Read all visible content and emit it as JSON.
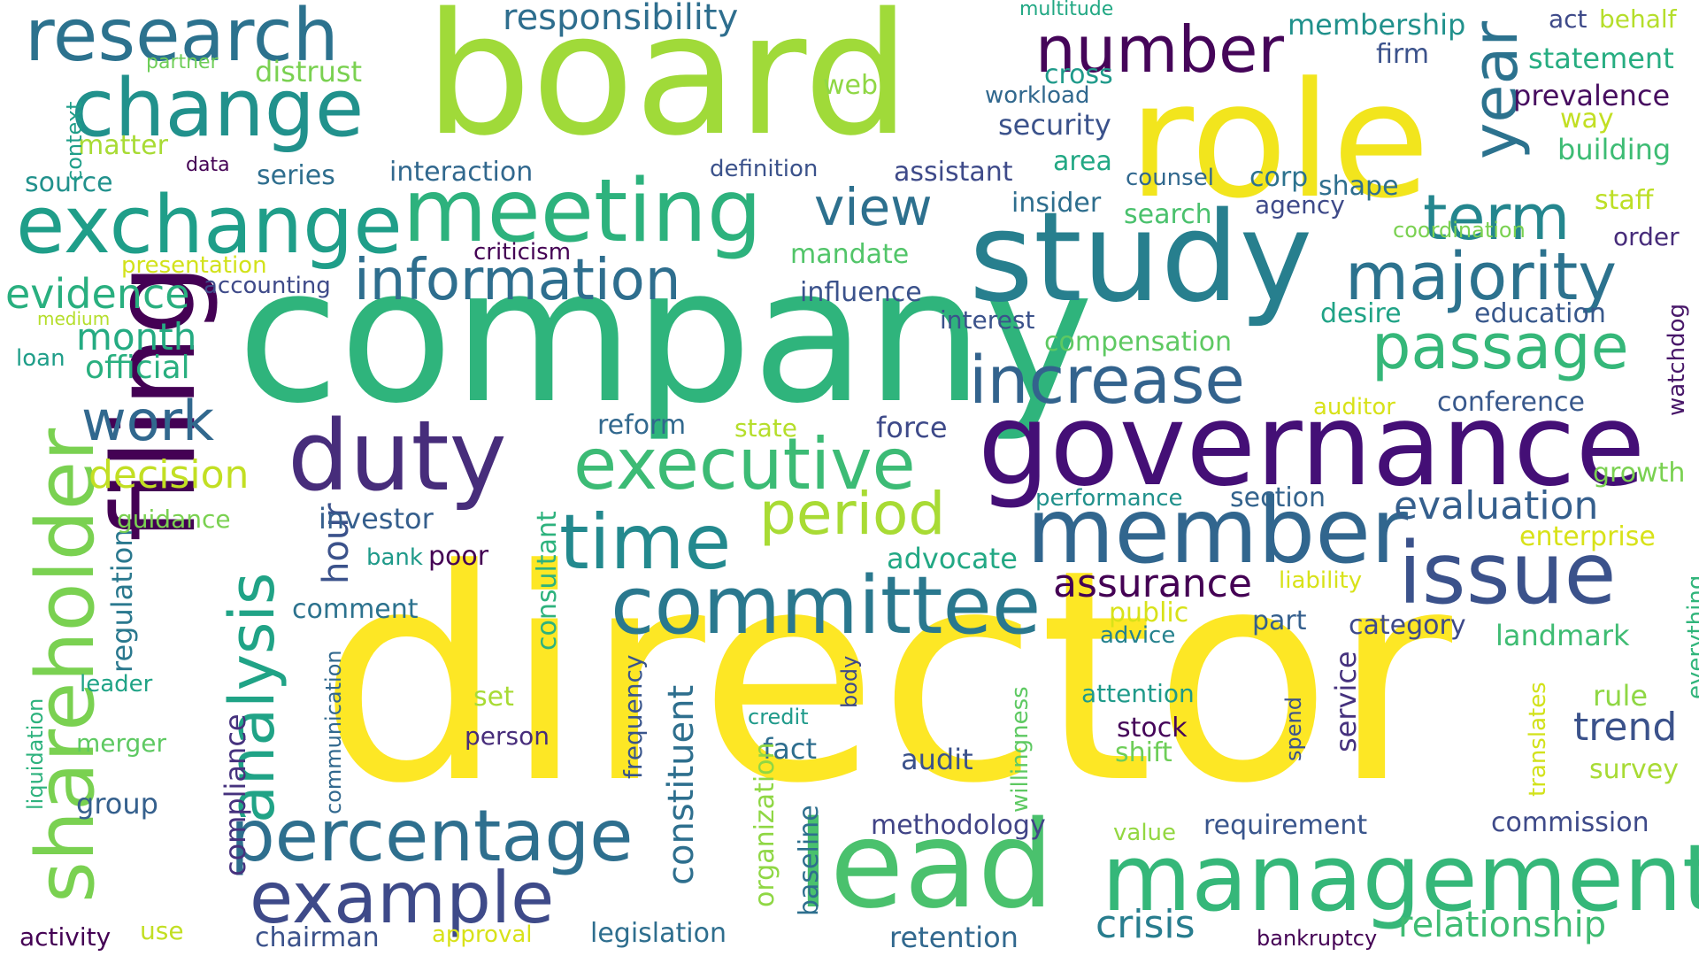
{
  "palette": {
    "background": "#ffffff",
    "scheme": "viridis"
  },
  "words": [
    {
      "text": "director",
      "color": "#fde725"
    },
    {
      "text": "board",
      "color": "#a0da39"
    },
    {
      "text": "company",
      "color": "#2fb47c"
    },
    {
      "text": "role",
      "color": "#f2e51d"
    },
    {
      "text": "study",
      "color": "#277f8e"
    },
    {
      "text": "governance",
      "color": "#440f76"
    },
    {
      "text": "filing",
      "color": "#440154"
    },
    {
      "text": "lead",
      "color": "#4ac16d"
    },
    {
      "text": "management",
      "color": "#35b779"
    },
    {
      "text": "duty",
      "color": "#472d7b"
    },
    {
      "text": "member",
      "color": "#31668e"
    },
    {
      "text": "meeting",
      "color": "#2db27d"
    },
    {
      "text": "exchange",
      "color": "#1f9e89"
    },
    {
      "text": "change",
      "color": "#21918c"
    },
    {
      "text": "research",
      "color": "#2c728e"
    },
    {
      "text": "shareholder",
      "color": "#7ad151"
    },
    {
      "text": "issue",
      "color": "#3b528b"
    },
    {
      "text": "committee",
      "color": "#2a788e"
    },
    {
      "text": "time",
      "color": "#23898e"
    },
    {
      "text": "executive",
      "color": "#3cbb75"
    },
    {
      "text": "period",
      "color": "#a8db34"
    },
    {
      "text": "increase",
      "color": "#33638d"
    },
    {
      "text": "majority",
      "color": "#2c728e"
    },
    {
      "text": "passage",
      "color": "#35b779"
    },
    {
      "text": "term",
      "color": "#24868e"
    },
    {
      "text": "year",
      "color": "#2c728e"
    },
    {
      "text": "number",
      "color": "#450559"
    },
    {
      "text": "percentage",
      "color": "#2e6f8e"
    },
    {
      "text": "example",
      "color": "#3e4a89"
    },
    {
      "text": "analysis",
      "color": "#20a386"
    },
    {
      "text": "information",
      "color": "#2e6e8e"
    },
    {
      "text": "work",
      "color": "#31688e"
    },
    {
      "text": "view",
      "color": "#2d708e"
    },
    {
      "text": "evidence",
      "color": "#29af7f"
    },
    {
      "text": "month",
      "color": "#25ab82"
    },
    {
      "text": "official",
      "color": "#29af7f"
    },
    {
      "text": "decision",
      "color": "#c2df23"
    },
    {
      "text": "assurance",
      "color": "#440154"
    },
    {
      "text": "evaluation",
      "color": "#355f8d"
    },
    {
      "text": "trend",
      "color": "#3b528b"
    },
    {
      "text": "crisis",
      "color": "#287d8e"
    },
    {
      "text": "relationship",
      "color": "#3fbc73"
    },
    {
      "text": "constituent",
      "color": "#2e6f8e"
    },
    {
      "text": "consultant",
      "color": "#2db27d"
    },
    {
      "text": "hour",
      "color": "#3b528b"
    },
    {
      "text": "responsibility",
      "color": "#2e6e8e"
    },
    {
      "text": "membership",
      "color": "#21918c"
    },
    {
      "text": "act",
      "color": "#3e4a89"
    },
    {
      "text": "behalf",
      "color": "#b5de2b"
    },
    {
      "text": "multitude",
      "color": "#22a884"
    },
    {
      "text": "firm",
      "color": "#3b528b"
    },
    {
      "text": "statement",
      "color": "#27ad81"
    },
    {
      "text": "prevalence",
      "color": "#470d60"
    },
    {
      "text": "way",
      "color": "#c2df23"
    },
    {
      "text": "building",
      "color": "#3dbc74"
    },
    {
      "text": "staff",
      "color": "#bddf26"
    },
    {
      "text": "coordination",
      "color": "#7ad151"
    },
    {
      "text": "order",
      "color": "#472c7a"
    },
    {
      "text": "education",
      "color": "#38588c"
    },
    {
      "text": "desire",
      "color": "#20a386"
    },
    {
      "text": "watchdog",
      "color": "#481769"
    },
    {
      "text": "conference",
      "color": "#38588c"
    },
    {
      "text": "auditor",
      "color": "#d8e219"
    },
    {
      "text": "growth",
      "color": "#7ad151"
    },
    {
      "text": "enterprise",
      "color": "#d8e219"
    },
    {
      "text": "liability",
      "color": "#d8e219"
    },
    {
      "text": "everything",
      "color": "#31b57b"
    },
    {
      "text": "landmark",
      "color": "#3fbc73"
    },
    {
      "text": "category",
      "color": "#3e4a89"
    },
    {
      "text": "part",
      "color": "#355f8d"
    },
    {
      "text": "section",
      "color": "#33638d"
    },
    {
      "text": "performance",
      "color": "#21918c"
    },
    {
      "text": "rule",
      "color": "#8fd744"
    },
    {
      "text": "survey",
      "color": "#a8db34"
    },
    {
      "text": "commission",
      "color": "#3e4a89"
    },
    {
      "text": "translates",
      "color": "#d2e21b"
    },
    {
      "text": "service",
      "color": "#46327e"
    },
    {
      "text": "spend",
      "color": "#3b528b"
    },
    {
      "text": "attention",
      "color": "#1f9a8a"
    },
    {
      "text": "stock",
      "color": "#450559"
    },
    {
      "text": "shift",
      "color": "#6ece58"
    },
    {
      "text": "requirement",
      "color": "#39558c"
    },
    {
      "text": "value",
      "color": "#93d741"
    },
    {
      "text": "bankruptcy",
      "color": "#440154"
    },
    {
      "text": "retention",
      "color": "#31688e"
    },
    {
      "text": "methodology",
      "color": "#414487"
    },
    {
      "text": "audit",
      "color": "#3b528b"
    },
    {
      "text": "willingness",
      "color": "#5ec962"
    },
    {
      "text": "fact",
      "color": "#2e6e8e"
    },
    {
      "text": "organization",
      "color": "#8fd744"
    },
    {
      "text": "baseline",
      "color": "#2e6f8e"
    },
    {
      "text": "body",
      "color": "#3e4a89"
    },
    {
      "text": "credit",
      "color": "#1f9a8a"
    },
    {
      "text": "frequency",
      "color": "#39558c"
    },
    {
      "text": "advocate",
      "color": "#22a884"
    },
    {
      "text": "public",
      "color": "#d8e219"
    },
    {
      "text": "advice",
      "color": "#26828e"
    },
    {
      "text": "legislation",
      "color": "#2e6e8e"
    },
    {
      "text": "approval",
      "color": "#d8e219"
    },
    {
      "text": "chairman",
      "color": "#3b528b"
    },
    {
      "text": "use",
      "color": "#c2df23"
    },
    {
      "text": "activity",
      "color": "#440154"
    },
    {
      "text": "compliance",
      "color": "#46327e"
    },
    {
      "text": "communication",
      "color": "#31688e"
    },
    {
      "text": "group",
      "color": "#35608d"
    },
    {
      "text": "merger",
      "color": "#5ec962"
    },
    {
      "text": "leader",
      "color": "#20a386"
    },
    {
      "text": "liquidation",
      "color": "#2db27d"
    },
    {
      "text": "regulation",
      "color": "#2a788e"
    },
    {
      "text": "set",
      "color": "#a8db34"
    },
    {
      "text": "person",
      "color": "#472d7b"
    },
    {
      "text": "comment",
      "color": "#2c728e"
    },
    {
      "text": "investor",
      "color": "#355f8d"
    },
    {
      "text": "bank",
      "color": "#1f9a8a"
    },
    {
      "text": "poor",
      "color": "#440154"
    },
    {
      "text": "guidance",
      "color": "#7ad151"
    },
    {
      "text": "reform",
      "color": "#31688e"
    },
    {
      "text": "state",
      "color": "#b5de2b"
    },
    {
      "text": "force",
      "color": "#3e4a89"
    },
    {
      "text": "compensation",
      "color": "#5ec962"
    },
    {
      "text": "interest",
      "color": "#3b528b"
    },
    {
      "text": "influence",
      "color": "#3b528b"
    },
    {
      "text": "mandate",
      "color": "#52c569"
    },
    {
      "text": "criticism",
      "color": "#440154"
    },
    {
      "text": "accounting",
      "color": "#3e4a89"
    },
    {
      "text": "presentation",
      "color": "#d2e21b"
    },
    {
      "text": "medium",
      "color": "#b5de2b"
    },
    {
      "text": "loan",
      "color": "#1f9e89"
    },
    {
      "text": "source",
      "color": "#21918c"
    },
    {
      "text": "data",
      "color": "#440154"
    },
    {
      "text": "series",
      "color": "#2e6e8e"
    },
    {
      "text": "interaction",
      "color": "#31688e"
    },
    {
      "text": "definition",
      "color": "#3b528b"
    },
    {
      "text": "assistant",
      "color": "#3e4a89"
    },
    {
      "text": "area",
      "color": "#22a884"
    },
    {
      "text": "counsel",
      "color": "#31688e"
    },
    {
      "text": "corp",
      "color": "#2c728e"
    },
    {
      "text": "shape",
      "color": "#2e6f8e"
    },
    {
      "text": "agency",
      "color": "#3e4a89"
    },
    {
      "text": "insider",
      "color": "#2e6e8e"
    },
    {
      "text": "search",
      "color": "#4ac16d"
    },
    {
      "text": "security",
      "color": "#3b528b"
    },
    {
      "text": "workload",
      "color": "#31688e"
    },
    {
      "text": "cross",
      "color": "#1f9a8a"
    },
    {
      "text": "web",
      "color": "#8fd744"
    },
    {
      "text": "distrust",
      "color": "#7ad151"
    },
    {
      "text": "partner",
      "color": "#6ece58"
    },
    {
      "text": "matter",
      "color": "#a8db34"
    },
    {
      "text": "context",
      "color": "#1f9e89"
    }
  ]
}
